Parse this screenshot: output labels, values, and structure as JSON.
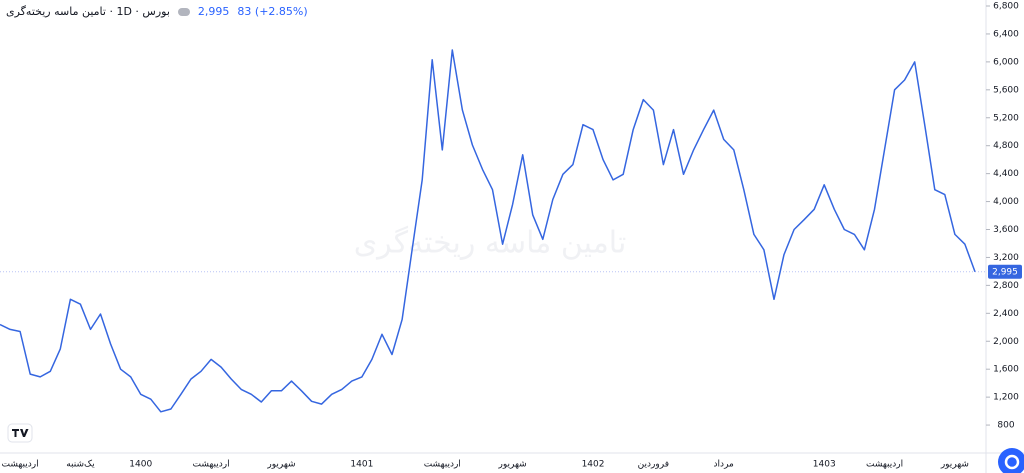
{
  "chart_data": {
    "type": "line",
    "title": "بورس · 1D · تامین ماسه ریخته‌گری",
    "watermark": "تامین ماسه ریخته‌گری",
    "price_label": {
      "value": 2995,
      "label": "2,995"
    },
    "change": "83 (+2.85%)",
    "categories": [
      null,
      null,
      "اردیبهشت",
      null,
      null,
      null,
      null,
      null,
      "یک‌شنبه",
      null,
      null,
      null,
      null,
      null,
      "1400",
      null,
      null,
      null,
      null,
      null,
      null,
      "اردیبهشت",
      null,
      null,
      null,
      null,
      null,
      null,
      "شهریور",
      null,
      null,
      null,
      null,
      null,
      null,
      null,
      "1401",
      null,
      null,
      null,
      null,
      null,
      null,
      null,
      "اردیبهشت",
      null,
      null,
      null,
      null,
      null,
      null,
      "شهریور",
      null,
      null,
      null,
      null,
      null,
      null,
      null,
      "1402",
      null,
      null,
      null,
      null,
      null,
      "فروردین",
      null,
      null,
      null,
      null,
      null,
      null,
      "مرداد",
      null,
      null,
      null,
      null,
      null,
      null,
      null,
      null,
      null,
      "1403",
      null,
      null,
      null,
      null,
      null,
      "اردیبهشت",
      null,
      null,
      null,
      null,
      null,
      null,
      "شهریور",
      null,
      null
    ],
    "series": [
      {
        "name": "تامین ماسه ریخته‌گری",
        "color": "#3566e0",
        "values": [
          2240,
          2170,
          2140,
          1530,
          1490,
          1570,
          1890,
          2600,
          2530,
          2170,
          2390,
          1960,
          1600,
          1490,
          1240,
          1170,
          990,
          1030,
          1240,
          1460,
          1570,
          1740,
          1630,
          1460,
          1310,
          1240,
          1130,
          1290,
          1290,
          1430,
          1290,
          1140,
          1100,
          1240,
          1310,
          1430,
          1490,
          1740,
          2100,
          1810,
          2310,
          3310,
          4310,
          6030,
          4740,
          6170,
          5310,
          4810,
          4460,
          4170,
          3390,
          3960,
          4670,
          3810,
          3460,
          4030,
          4390,
          4530,
          5100,
          5030,
          4600,
          4310,
          4390,
          5030,
          5460,
          5310,
          4530,
          5030,
          4390,
          4740,
          5030,
          5310,
          4890,
          4740,
          4170,
          3530,
          3310,
          2600,
          3240,
          3600,
          3740,
          3890,
          4240,
          3890,
          3600,
          3530,
          3310,
          3890,
          4740,
          5600,
          5740,
          6000,
          5100,
          4170,
          4100,
          3530,
          3390,
          2995
        ]
      }
    ],
    "ylim": [
      443,
      6886
    ],
    "yticks": [
      800,
      {
        "value": 1200,
        "label": "1,200"
      },
      {
        "value": 1600,
        "label": "1,600"
      },
      {
        "value": 2000,
        "label": "2,000"
      },
      {
        "value": 2400,
        "label": "2,400"
      },
      {
        "value": 2800,
        "label": "2,800"
      },
      {
        "value": 3200,
        "label": "3,200"
      },
      {
        "value": 3600,
        "label": "3,600"
      },
      {
        "value": 4000,
        "label": "4,000"
      },
      {
        "value": 4400,
        "label": "4,400"
      },
      {
        "value": 4800,
        "label": "4,800"
      },
      {
        "value": 5200,
        "label": "5,200"
      },
      {
        "value": 5600,
        "label": "5,600"
      },
      {
        "value": 6000,
        "label": "6,000"
      },
      {
        "value": 6400,
        "label": "6,400"
      },
      {
        "value": 6800,
        "label": "6,800"
      }
    ],
    "grid": false
  }
}
